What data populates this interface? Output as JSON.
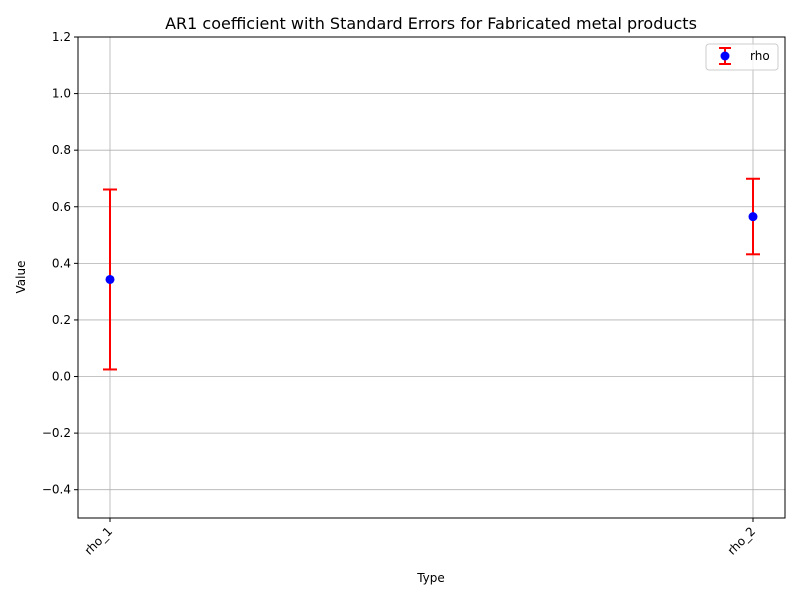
{
  "chart_data": {
    "type": "errorbar",
    "title": "AR1 coefficient with Standard Errors for Fabricated metal products",
    "xlabel": "Type",
    "ylabel": "Value",
    "categories": [
      "rho_1",
      "rho_2"
    ],
    "series": [
      {
        "name": "rho",
        "values": [
          0.343,
          0.565
        ],
        "lower": [
          0.025,
          0.432
        ],
        "upper": [
          0.661,
          0.699
        ]
      }
    ],
    "ylim": [
      -0.5,
      1.2
    ],
    "yticks": [
      -0.4,
      -0.2,
      0.0,
      0.2,
      0.4,
      0.6,
      0.8,
      1.0,
      1.2
    ],
    "ytick_labels": [
      "−0.4",
      "−0.2",
      "0.0",
      "0.2",
      "0.4",
      "0.6",
      "0.8",
      "1.0",
      "1.2"
    ],
    "grid": true,
    "legend_position": "top-right",
    "colors": {
      "marker": "#0000ff",
      "errorbar": "#ff0000",
      "grid": "#b0b0b0"
    }
  }
}
